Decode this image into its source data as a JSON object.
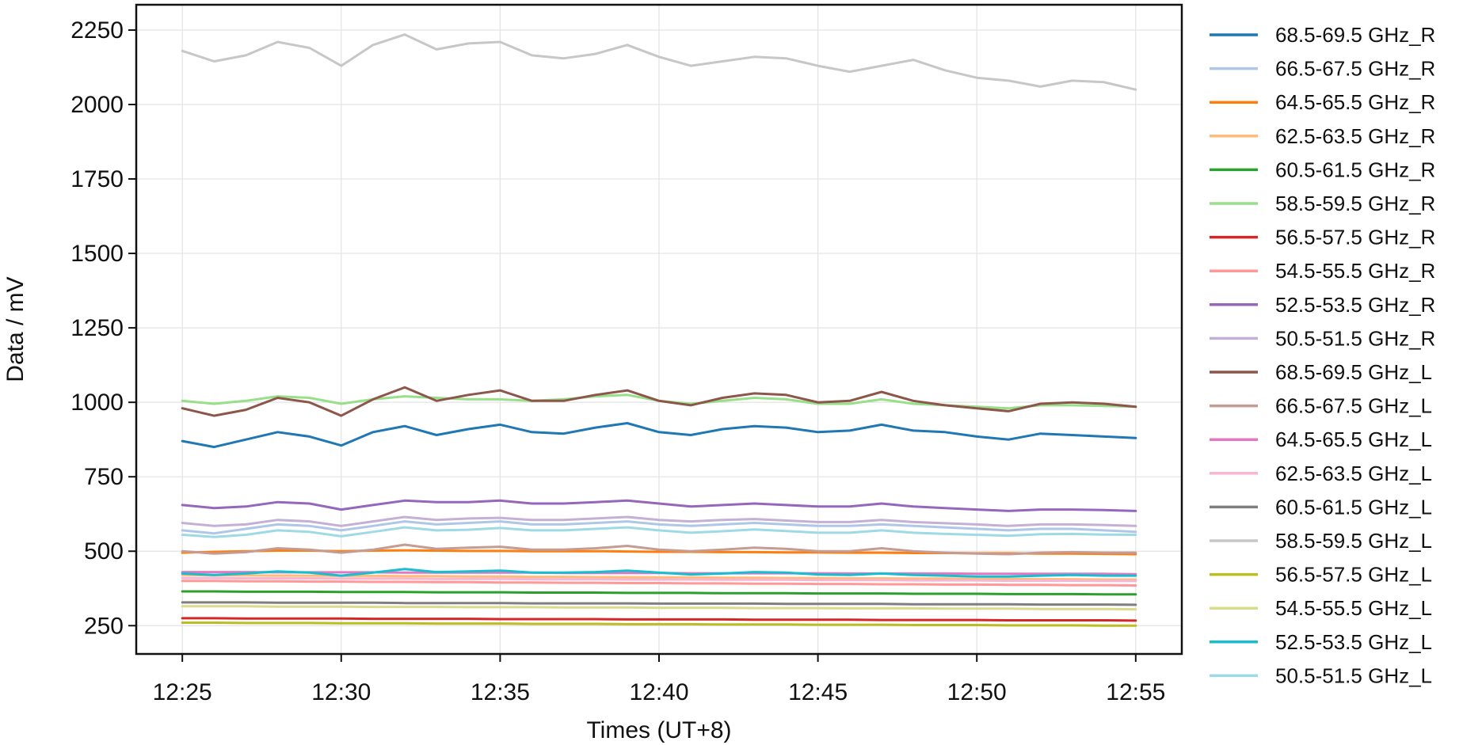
{
  "chart_data": {
    "type": "line",
    "xlabel": "Times (UT+8)",
    "ylabel": "Data / mV",
    "x_ticks": [
      "12:25",
      "12:30",
      "12:35",
      "12:40",
      "12:45",
      "12:50",
      "12:55"
    ],
    "x_tick_minutes": [
      0,
      5,
      10,
      15,
      20,
      25,
      30
    ],
    "x_range_minutes": [
      -1.45,
      31.45
    ],
    "y_ticks": [
      250,
      500,
      750,
      1000,
      1250,
      1500,
      1750,
      2000,
      2250
    ],
    "ylim": [
      155,
      2335
    ],
    "grid": true,
    "legend_position": "right-outside",
    "x_minutes": [
      0,
      1,
      2,
      3,
      4,
      5,
      6,
      7,
      8,
      9,
      10,
      11,
      12,
      13,
      14,
      15,
      16,
      17,
      18,
      19,
      20,
      21,
      22,
      23,
      24,
      25,
      26,
      27,
      28,
      29,
      30
    ],
    "series": [
      {
        "name": "68.5-69.5 GHz_R",
        "color": "#1f77b4",
        "values": [
          870,
          850,
          875,
          900,
          885,
          855,
          900,
          920,
          890,
          910,
          925,
          900,
          895,
          915,
          930,
          900,
          890,
          910,
          920,
          915,
          900,
          905,
          925,
          905,
          900,
          885,
          875,
          895,
          890,
          885,
          880
        ]
      },
      {
        "name": "66.5-67.5 GHz_R",
        "color": "#aec7e8",
        "values": [
          570,
          560,
          575,
          590,
          585,
          570,
          585,
          600,
          590,
          595,
          600,
          590,
          590,
          595,
          600,
          590,
          585,
          590,
          595,
          590,
          585,
          585,
          590,
          585,
          580,
          575,
          570,
          575,
          575,
          570,
          565
        ]
      },
      {
        "name": "64.5-65.5 GHz_R",
        "color": "#ff7f0e",
        "values": [
          495,
          498,
          500,
          502,
          502,
          500,
          502,
          503,
          502,
          501,
          501,
          500,
          500,
          500,
          499,
          498,
          498,
          497,
          497,
          496,
          496,
          495,
          495,
          494,
          494,
          493,
          493,
          492,
          492,
          491,
          490
        ]
      },
      {
        "name": "62.5-63.5 GHz_R",
        "color": "#ffbb78",
        "values": [
          420,
          419,
          419,
          418,
          418,
          417,
          417,
          416,
          416,
          415,
          415,
          414,
          414,
          413,
          413,
          412,
          412,
          411,
          411,
          410,
          410,
          409,
          409,
          408,
          408,
          407,
          407,
          406,
          406,
          405,
          405
        ]
      },
      {
        "name": "60.5-61.5 GHz_R",
        "color": "#2ca02c",
        "values": [
          365,
          365,
          364,
          364,
          364,
          363,
          363,
          363,
          362,
          362,
          362,
          361,
          361,
          361,
          360,
          360,
          360,
          359,
          359,
          359,
          358,
          358,
          358,
          357,
          357,
          357,
          356,
          356,
          356,
          355,
          355
        ]
      },
      {
        "name": "58.5-59.5 GHz_R",
        "color": "#98df8a",
        "values": [
          1005,
          995,
          1005,
          1020,
          1015,
          995,
          1010,
          1020,
          1015,
          1010,
          1010,
          1005,
          1010,
          1020,
          1025,
          1005,
          995,
          1005,
          1015,
          1010,
          995,
          995,
          1010,
          995,
          990,
          985,
          980,
          990,
          990,
          988,
          985
        ]
      },
      {
        "name": "56.5-57.5 GHz_R",
        "color": "#d62728",
        "values": [
          275,
          275,
          274,
          274,
          274,
          274,
          273,
          273,
          273,
          273,
          272,
          272,
          272,
          272,
          271,
          271,
          271,
          271,
          270,
          270,
          270,
          270,
          269,
          269,
          269,
          269,
          268,
          268,
          268,
          268,
          267
        ]
      },
      {
        "name": "54.5-55.5 GHz_R",
        "color": "#ff9896",
        "values": [
          400,
          400,
          399,
          399,
          398,
          398,
          397,
          397,
          396,
          396,
          395,
          395,
          394,
          394,
          393,
          393,
          392,
          392,
          391,
          391,
          390,
          390,
          389,
          389,
          388,
          388,
          387,
          387,
          386,
          386,
          385
        ]
      },
      {
        "name": "52.5-53.5 GHz_R",
        "color": "#9467bd",
        "values": [
          655,
          645,
          650,
          665,
          660,
          640,
          655,
          670,
          665,
          665,
          670,
          660,
          660,
          665,
          670,
          660,
          650,
          655,
          660,
          655,
          650,
          650,
          660,
          650,
          645,
          640,
          635,
          640,
          640,
          638,
          635
        ]
      },
      {
        "name": "50.5-51.5 GHz_R",
        "color": "#c5b0d5",
        "values": [
          595,
          585,
          590,
          605,
          600,
          585,
          600,
          615,
          605,
          610,
          612,
          605,
          605,
          610,
          615,
          605,
          600,
          605,
          608,
          603,
          598,
          598,
          605,
          598,
          594,
          590,
          585,
          590,
          590,
          588,
          585
        ]
      },
      {
        "name": "68.5-69.5 GHz_L",
        "color": "#8c564b",
        "values": [
          980,
          955,
          975,
          1015,
          1000,
          955,
          1010,
          1050,
          1005,
          1025,
          1040,
          1005,
          1005,
          1025,
          1040,
          1005,
          990,
          1015,
          1030,
          1025,
          1000,
          1005,
          1035,
          1005,
          990,
          980,
          970,
          995,
          1000,
          995,
          985
        ]
      },
      {
        "name": "66.5-67.5 GHz_L",
        "color": "#c49c94",
        "values": [
          500,
          492,
          497,
          510,
          505,
          495,
          505,
          522,
          508,
          512,
          515,
          505,
          505,
          510,
          518,
          505,
          500,
          505,
          512,
          508,
          500,
          500,
          510,
          500,
          495,
          492,
          490,
          495,
          497,
          495,
          495
        ]
      },
      {
        "name": "64.5-65.5 GHz_L",
        "color": "#e377c2",
        "values": [
          430,
          430,
          430,
          429,
          429,
          429,
          429,
          428,
          428,
          428,
          428,
          428,
          427,
          427,
          427,
          427,
          426,
          426,
          426,
          426,
          426,
          425,
          425,
          425,
          425,
          424,
          424,
          424,
          424,
          424,
          423
        ]
      },
      {
        "name": "62.5-63.5 GHz_L",
        "color": "#f7b6d2",
        "values": [
          410,
          410,
          409,
          409,
          409,
          408,
          408,
          408,
          407,
          407,
          407,
          406,
          406,
          406,
          405,
          405,
          405,
          404,
          404,
          404,
          403,
          403,
          403,
          402,
          402,
          402,
          401,
          401,
          401,
          400,
          400
        ]
      },
      {
        "name": "60.5-61.5 GHz_L",
        "color": "#7f7f7f",
        "values": [
          328,
          328,
          328,
          327,
          327,
          327,
          327,
          326,
          326,
          326,
          326,
          325,
          325,
          325,
          325,
          324,
          324,
          324,
          324,
          323,
          323,
          323,
          323,
          322,
          322,
          322,
          322,
          321,
          321,
          321,
          320
        ]
      },
      {
        "name": "58.5-59.5 GHz_L",
        "color": "#c7c7c7",
        "values": [
          2180,
          2145,
          2165,
          2210,
          2190,
          2130,
          2200,
          2235,
          2185,
          2205,
          2210,
          2165,
          2155,
          2170,
          2200,
          2160,
          2130,
          2145,
          2160,
          2155,
          2130,
          2110,
          2130,
          2150,
          2115,
          2090,
          2080,
          2060,
          2080,
          2075,
          2050
        ]
      },
      {
        "name": "56.5-57.5 GHz_L",
        "color": "#bcbd22",
        "values": [
          260,
          260,
          259,
          259,
          259,
          258,
          258,
          258,
          257,
          257,
          257,
          256,
          256,
          256,
          255,
          255,
          255,
          254,
          254,
          254,
          253,
          253,
          253,
          252,
          252,
          252,
          251,
          251,
          251,
          250,
          250
        ]
      },
      {
        "name": "54.5-55.5 GHz_L",
        "color": "#dbdb8d",
        "values": [
          315,
          315,
          315,
          314,
          314,
          314,
          313,
          313,
          313,
          312,
          312,
          312,
          311,
          311,
          311,
          310,
          310,
          310,
          309,
          309,
          309,
          308,
          308,
          308,
          307,
          307,
          307,
          306,
          306,
          306,
          305
        ]
      },
      {
        "name": "52.5-53.5 GHz_L",
        "color": "#17becf",
        "values": [
          425,
          420,
          425,
          432,
          428,
          418,
          428,
          440,
          430,
          432,
          435,
          428,
          428,
          430,
          435,
          428,
          422,
          425,
          430,
          428,
          422,
          420,
          425,
          420,
          418,
          415,
          415,
          418,
          420,
          418,
          418
        ]
      },
      {
        "name": "50.5-51.5 GHz_L",
        "color": "#9edae5",
        "values": [
          555,
          548,
          555,
          570,
          565,
          550,
          565,
          580,
          570,
          572,
          578,
          570,
          570,
          575,
          580,
          570,
          562,
          567,
          573,
          568,
          562,
          562,
          570,
          562,
          558,
          555,
          552,
          557,
          558,
          556,
          555
        ]
      }
    ]
  }
}
